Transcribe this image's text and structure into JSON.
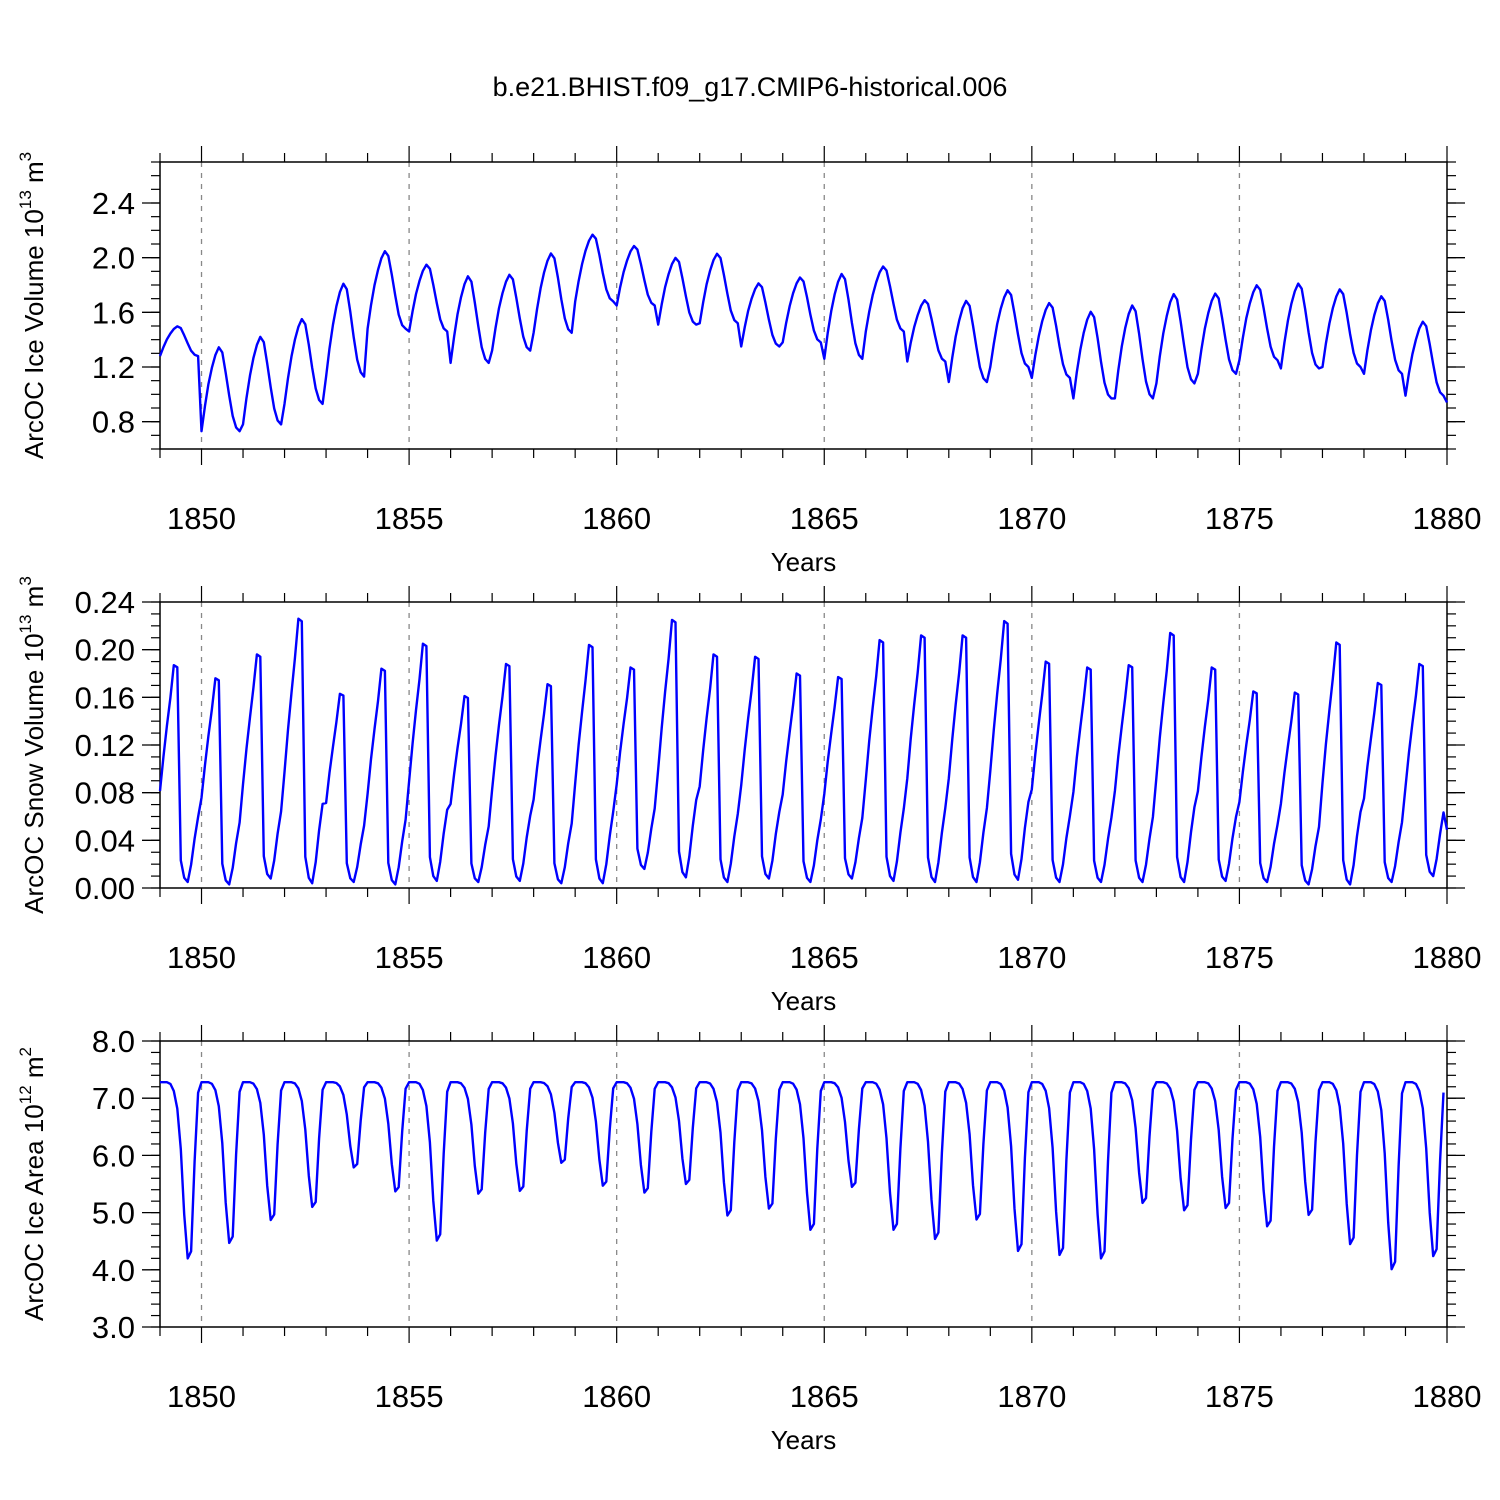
{
  "title": "b.e21.BHIST.f09_g17.CMIP6-historical.006",
  "chart_data": [
    {
      "type": "line",
      "name": "ice-volume",
      "ylabel": {
        "text": "ArcOC Ice Volume 10",
        "exp": "13",
        "unit": " m",
        "unit_exp": "3"
      },
      "xlabel": "Years",
      "xlim": [
        1849.0,
        1880.0
      ],
      "ylim": [
        0.6,
        2.7
      ],
      "yticks": [
        0.8,
        1.2,
        1.6,
        2.0,
        2.4
      ],
      "ytick_labels": [
        "0.8",
        "1.2",
        "1.6",
        "2.0",
        "2.4"
      ],
      "yminor_step": 0.1,
      "xticks": [
        1850,
        1855,
        1860,
        1865,
        1870,
        1875,
        1880
      ],
      "xtick_labels": [
        "1850",
        "1855",
        "1860",
        "1865",
        "1870",
        "1875",
        "1880"
      ],
      "color": "#0000ff",
      "series": [
        {
          "name": "ArcOC Ice Volume",
          "month_shape": [
            0,
            0.2,
            0.37,
            0.5,
            0.6,
            0.66,
            0.62,
            0.46,
            0.28,
            0.12,
            0.03,
            0
          ],
          "x_start": 1849.0,
          "x_step_per_month": 0.0833333,
          "cycles": [
            [
              1.28,
              1.61
            ],
            [
              0.73,
              1.66
            ],
            [
              0.78,
              1.75
            ],
            [
              0.93,
              1.87
            ],
            [
              1.13,
              2.16
            ],
            [
              1.48,
              2.34
            ],
            [
              1.46,
              2.2
            ],
            [
              1.23,
              2.19
            ],
            [
              1.32,
              2.16
            ],
            [
              1.45,
              2.33
            ],
            [
              1.68,
              2.42
            ],
            [
              1.65,
              2.31
            ],
            [
              1.51,
              2.25
            ],
            [
              1.52,
              2.29
            ],
            [
              1.35,
              2.05
            ],
            [
              1.38,
              2.1
            ],
            [
              1.26,
              2.2
            ],
            [
              1.46,
              2.18
            ],
            [
              1.24,
              1.92
            ],
            [
              1.09,
              1.99
            ],
            [
              1.2,
              2.05
            ],
            [
              1.12,
              1.95
            ],
            [
              0.97,
              1.93
            ],
            [
              0.97,
              2.0
            ],
            [
              1.08,
              2.07
            ],
            [
              1.15,
              2.04
            ],
            [
              1.25,
              2.08
            ],
            [
              1.19,
              2.13
            ],
            [
              1.2,
              2.06
            ],
            [
              1.15,
              2.01
            ],
            [
              0.99,
              1.81
            ],
            [
              0.94,
              1.33
            ]
          ]
        }
      ]
    },
    {
      "type": "line",
      "name": "snow-volume",
      "ylabel": {
        "text": "ArcOC Snow Volume 10",
        "exp": "13",
        "unit": " m",
        "unit_exp": "3"
      },
      "xlabel": "Years",
      "xlim": [
        1849.0,
        1880.0
      ],
      "ylim": [
        0.0,
        0.24
      ],
      "yticks": [
        0.0,
        0.04,
        0.08,
        0.12,
        0.16,
        0.2,
        0.24
      ],
      "ytick_labels": [
        "0.00",
        "0.04",
        "0.08",
        "0.12",
        "0.16",
        "0.20",
        "0.24"
      ],
      "yminor_step": 0.01,
      "xticks": [
        1850,
        1855,
        1860,
        1865,
        1870,
        1875,
        1880
      ],
      "xtick_labels": [
        "1850",
        "1855",
        "1860",
        "1865",
        "1870",
        "1875",
        "1880"
      ],
      "color": "#0000ff",
      "series": [
        {
          "name": "ArcOC Snow Volume",
          "month_shape": [
            0.42,
            0.58,
            0.72,
            0.85,
            1.0,
            0.99,
            0.1,
            0.02,
            0.0,
            0.08,
            0.2,
            0.3
          ],
          "x_start": 1849.0,
          "x_step_per_month": 0.0833333,
          "cycles": [
            [
              0.005,
              0.187
            ],
            [
              0.003,
              0.176
            ],
            [
              0.008,
              0.196
            ],
            [
              0.004,
              0.226
            ],
            [
              0.005,
              0.163
            ],
            [
              0.003,
              0.184
            ],
            [
              0.006,
              0.205
            ],
            [
              0.005,
              0.161
            ],
            [
              0.006,
              0.188
            ],
            [
              0.004,
              0.171
            ],
            [
              0.004,
              0.204
            ],
            [
              0.016,
              0.185
            ],
            [
              0.009,
              0.225
            ],
            [
              0.005,
              0.196
            ],
            [
              0.008,
              0.194
            ],
            [
              0.005,
              0.18
            ],
            [
              0.008,
              0.177
            ],
            [
              0.006,
              0.208
            ],
            [
              0.005,
              0.212
            ],
            [
              0.005,
              0.212
            ],
            [
              0.007,
              0.224
            ],
            [
              0.005,
              0.19
            ],
            [
              0.005,
              0.185
            ],
            [
              0.005,
              0.187
            ],
            [
              0.005,
              0.214
            ],
            [
              0.006,
              0.185
            ],
            [
              0.005,
              0.165
            ],
            [
              0.003,
              0.164
            ],
            [
              0.003,
              0.206
            ],
            [
              0.005,
              0.172
            ],
            [
              0.01,
              0.188
            ],
            [
              0.03,
              0.075
            ]
          ]
        }
      ]
    },
    {
      "type": "line",
      "name": "ice-area",
      "ylabel": {
        "text": "ArcOC Ice Area 10",
        "exp": "12",
        "unit": " m",
        "unit_exp": "2"
      },
      "xlabel": "Years",
      "xlim": [
        1849.0,
        1880.0
      ],
      "ylim": [
        3.0,
        8.0
      ],
      "yticks": [
        3.0,
        4.0,
        5.0,
        6.0,
        7.0,
        8.0
      ],
      "ytick_labels": [
        "3.0",
        "4.0",
        "5.0",
        "6.0",
        "7.0",
        "8.0"
      ],
      "yminor_step": 0.2,
      "xticks": [
        1850,
        1855,
        1860,
        1865,
        1870,
        1875,
        1880
      ],
      "xtick_labels": [
        "1850",
        "1855",
        "1860",
        "1865",
        "1870",
        "1875",
        "1880"
      ],
      "color": "#0000ff",
      "series": [
        {
          "name": "ArcOC Ice Area",
          "month_shape": [
            1.0,
            1.0,
            1.0,
            0.99,
            0.95,
            0.85,
            0.62,
            0.25,
            0.0,
            0.04,
            0.55,
            0.94
          ],
          "x_start": 1849.0,
          "x_step_per_month": 0.0833333,
          "cycles": [
            [
              4.2,
              7.28
            ],
            [
              4.47,
              7.28
            ],
            [
              4.87,
              7.28
            ],
            [
              5.1,
              7.28
            ],
            [
              5.79,
              7.28
            ],
            [
              5.37,
              7.28
            ],
            [
              4.51,
              7.28
            ],
            [
              5.33,
              7.28
            ],
            [
              5.38,
              7.28
            ],
            [
              5.87,
              7.28
            ],
            [
              5.47,
              7.28
            ],
            [
              5.35,
              7.28
            ],
            [
              5.5,
              7.28
            ],
            [
              4.95,
              7.28
            ],
            [
              5.07,
              7.28
            ],
            [
              4.7,
              7.28
            ],
            [
              5.45,
              7.28
            ],
            [
              4.7,
              7.28
            ],
            [
              4.54,
              7.28
            ],
            [
              4.88,
              7.28
            ],
            [
              4.33,
              7.28
            ],
            [
              4.26,
              7.28
            ],
            [
              4.2,
              7.28
            ],
            [
              5.17,
              7.28
            ],
            [
              5.04,
              7.28
            ],
            [
              5.08,
              7.28
            ],
            [
              4.76,
              7.28
            ],
            [
              4.96,
              7.28
            ],
            [
              4.45,
              7.28
            ],
            [
              4.01,
              7.28
            ],
            [
              4.24,
              7.28
            ]
          ]
        }
      ]
    }
  ]
}
